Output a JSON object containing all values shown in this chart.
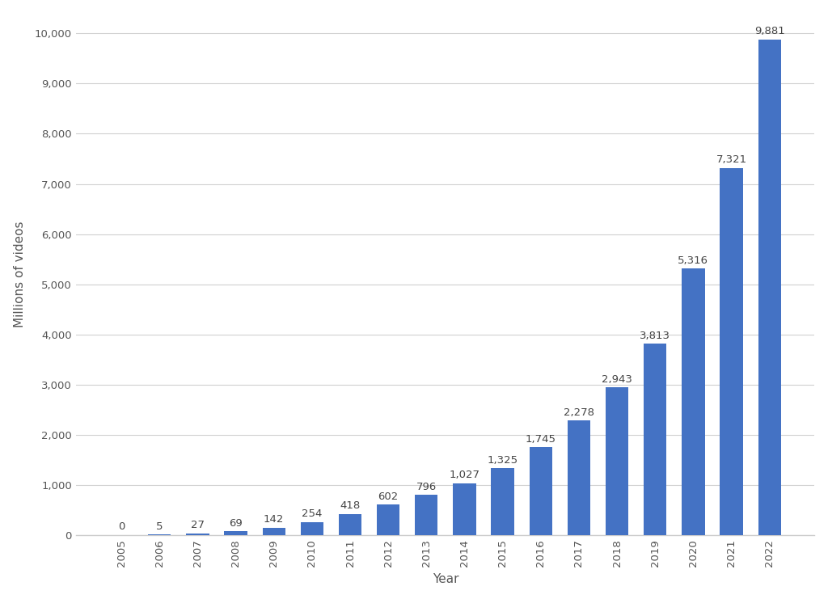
{
  "years": [
    2005,
    2006,
    2007,
    2008,
    2009,
    2010,
    2011,
    2012,
    2013,
    2014,
    2015,
    2016,
    2017,
    2018,
    2019,
    2020,
    2021,
    2022
  ],
  "values": [
    0,
    5,
    27,
    69,
    142,
    254,
    418,
    602,
    796,
    1027,
    1325,
    1745,
    2278,
    2943,
    3813,
    5316,
    7321,
    9881
  ],
  "bar_color": "#4472C4",
  "xlabel": "Year",
  "ylabel": "Millions of videos",
  "ylim": [
    0,
    10400
  ],
  "yticks": [
    0,
    1000,
    2000,
    3000,
    4000,
    5000,
    6000,
    7000,
    8000,
    9000,
    10000
  ],
  "ytick_labels": [
    "0",
    "1,000",
    "2,000",
    "3,000",
    "4,000",
    "5,000",
    "6,000",
    "7,000",
    "8,000",
    "9,000",
    "10,000"
  ],
  "background_color": "#ffffff",
  "grid_color": "#d0d0d0",
  "label_fontsize": 9.5,
  "axis_label_fontsize": 11,
  "bar_width": 0.6,
  "tick_label_color": "#555555",
  "value_label_color": "#444444"
}
